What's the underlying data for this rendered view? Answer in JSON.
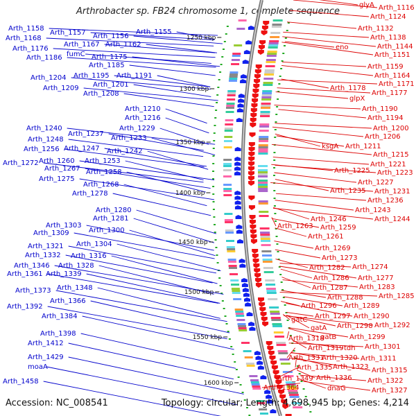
{
  "title": "Arthrobacter sp. FB24 chromosome 1, complete sequence",
  "footer": {
    "accession_label": "Accession:",
    "accession": "NC_008541",
    "topology_text": "Topology: circular; Length: 4,698,945 bp; Genes: 4,214"
  },
  "colors": {
    "left_labels": "#0000cc",
    "right_labels": "#dd0000",
    "backbone": "#7a7a7a",
    "tick_marks": "#22aa22"
  },
  "scale_marks": [
    {
      "label": "1250 kbp"
    },
    {
      "label": "1300 kbp"
    },
    {
      "label": "1350 kbp"
    },
    {
      "label": "1400 kbp"
    },
    {
      "label": "1450 kbp"
    },
    {
      "label": "1500 kbp"
    },
    {
      "label": "1550 kbp"
    },
    {
      "label": "1600 kbp"
    }
  ],
  "left_labels": [
    "Arth_1158",
    "Arth_1157",
    "Arth_1156",
    "Arth_1155",
    "Arth_1168",
    "Arth_1167",
    "Arth_1162",
    "Arth_1176",
    "fumC",
    "Arth_1175",
    "Arth_1186",
    "Arth_1185",
    "Arth_1195",
    "Arth_1191",
    "Arth_1204",
    "Arth_1201",
    "Arth_1209",
    "Arth_1208",
    "Arth_1210",
    "Arth_1216",
    "Arth_1240",
    "Arth_1229",
    "Arth_1237",
    "Arth_1233",
    "Arth_1248",
    "Arth_1247",
    "Arth_1242",
    "Arth_1256",
    "Arth_1253",
    "Arth_1272",
    "Arth_1260",
    "Arth_1258",
    "Arth_1267",
    "Arth_1268",
    "Arth_1275",
    "Arth_1278",
    "Arth_1280",
    "Arth_1281",
    "Arth_1303",
    "Arth_1300",
    "Arth_1309",
    "Arth_1304",
    "Arth_1321",
    "Arth_1316",
    "Arth_1332",
    "Arth_1328",
    "Arth_1346",
    "Arth_1339",
    "Arth_1361",
    "Arth_1348",
    "Arth_1373",
    "Arth_1366",
    "Arth_1392",
    "Arth_1384",
    "Arth_1398",
    "Arth_1412",
    "Arth_1429",
    "moaA",
    "Arth_1458"
  ],
  "right_labels": [
    "glyA",
    "Arth_1116",
    "Arth_1124",
    "Arth_1132",
    "Arth_1138",
    "eno",
    "Arth_1144",
    "Arth_1151",
    "Arth_1159",
    "Arth_1164",
    "Arth_1178",
    "Arth_1171",
    "Arth_1177",
    "glpX",
    "Arth_1190",
    "Arth_1194",
    "Arth_1200",
    "Arth_1206",
    "ksgA",
    "Arth_1211",
    "Arth_1215",
    "Arth_1221",
    "Arth_1225",
    "Arth_1223",
    "Arth_1227",
    "Arth_1235",
    "Arth_1231",
    "Arth_1236",
    "Arth_1243",
    "Arth_1246",
    "Arth_1244",
    "Arth_1263",
    "Arth_1259",
    "Arth_1261",
    "Arth_1269",
    "Arth_1273",
    "Arth_1282",
    "Arth_1274",
    "Arth_1286",
    "Arth_1277",
    "Arth_1287",
    "Arth_1283",
    "Arth_1288",
    "Arth_1285",
    "Arth_1296",
    "Arth_1289",
    "gatC",
    "Arth_1297",
    "Arth_1290",
    "gatA",
    "Arth_1298",
    "Arth_1292",
    "Arth_1318",
    "gatB",
    "Arth_1299",
    "Arth_1319",
    "tdh",
    "Arth_1301",
    "Arth_1331",
    "Arth_1320",
    "Arth_1311",
    "Arth_1335",
    "Arth_1323",
    "Arth_1315",
    "Arth_1349",
    "Arth_1336",
    "Arth_1322",
    "Arth_1364",
    "dnaG",
    "Arth_1327"
  ]
}
